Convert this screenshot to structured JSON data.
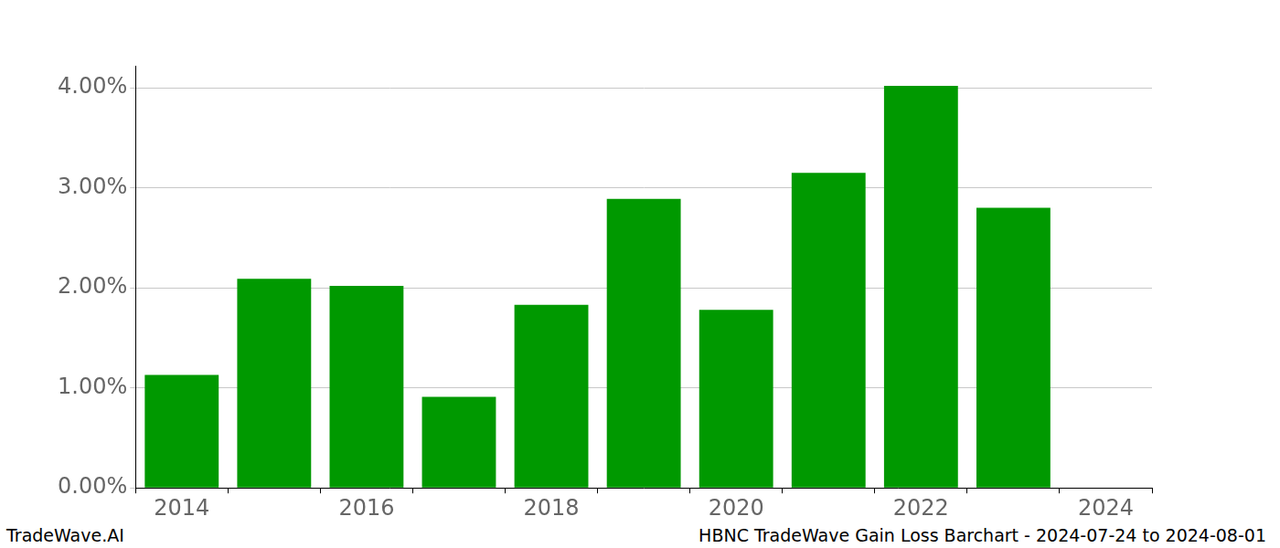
{
  "chart_data": {
    "type": "bar",
    "categories": [
      "2014",
      null,
      "2016",
      null,
      "2018",
      null,
      "2020",
      null,
      "2022",
      null,
      "2024"
    ],
    "values": [
      1.13,
      2.09,
      2.02,
      0.91,
      1.83,
      2.89,
      1.78,
      3.15,
      4.02,
      2.8,
      null
    ],
    "color": "#009900",
    "ylim": [
      0,
      4.22
    ],
    "yticks": [
      {
        "value": 0,
        "label": "0.00%"
      },
      {
        "value": 1,
        "label": "1.00%"
      },
      {
        "value": 2,
        "label": "2.00%"
      },
      {
        "value": 3,
        "label": "3.00%"
      },
      {
        "value": 4,
        "label": "4.00%"
      }
    ],
    "grid": true,
    "annotations": [
      "TradeWave.AI",
      "HBNC TradeWave Gain Loss Barchart - 2024-07-24 to 2024-08-01"
    ]
  }
}
